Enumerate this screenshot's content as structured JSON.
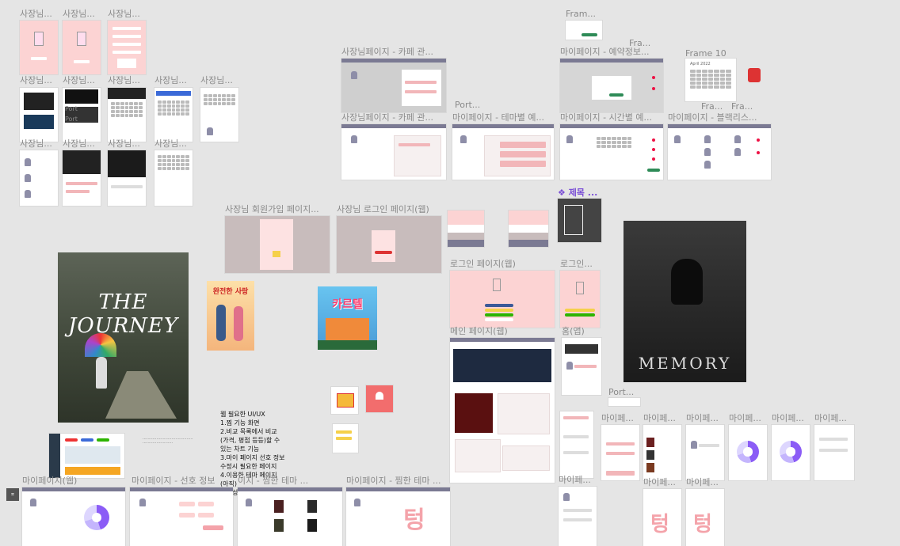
{
  "labels": {
    "owner": "사장님...",
    "port": "Port...",
    "port2": "Port",
    "fram": "Fram...",
    "fra": "Fra...",
    "frame10": "Frame 10",
    "cafe_mgmt": "사장님페이지 - 카페 관...",
    "my_reserve": "마이페이지 - 예약정보...",
    "cafe_mgmt2": "사장님페이지 - 카페 관...",
    "my_theme_reserve": "마이페이지 - 테마별 예...",
    "my_time_reserve": "마이페이지 - 시간별 예...",
    "my_blacklist": "마이페이지 - 블랙리스...",
    "title_component": "❖ 제목 ...",
    "owner_signup": "사장님 회원가입 페이지...",
    "owner_login": "사장님 로그인 페이지(웹)",
    "login_web": "로그인 페이지(웹)",
    "login_short": "로그인...",
    "main_web": "메인 페이지(웹)",
    "home_app": "홈(앱)",
    "mypage": "마이페...",
    "mypage_web": "마이페이지(웹)",
    "pref_info": "마이페이지 - 선호 정보",
    "liked_theme": "이지 - 찜한 테마 ...",
    "liked_theme2": "마이페이지 - 찜한 테마 ..."
  },
  "notes": {
    "requirements": "웹 필요한 UI/UX\n1.찜 기능 화면\n2.비교 목록에서 비교\n(가격, 평점 등등)할 수\n있는 차트 기능\n3.마이 페이지 선호 정보\n수정시 필요한 페이지\n4.이용한 테마 페이지\n(아직)\n5.작성글 관리(아직)"
  },
  "posters": {
    "journey_title": "THE JOURNEY",
    "perfect_love": "완전한 사랑",
    "carnival": "카르텔",
    "memory": "MEMORY"
  },
  "empty_text": "텅",
  "frame10_header": "April 2022",
  "colors": {
    "canvas": "#e5e5e5",
    "pink": "#fcd3d3",
    "navbar": "#7b7a93",
    "accent_purple": "#8b5cf6",
    "red": "#e11d48"
  }
}
